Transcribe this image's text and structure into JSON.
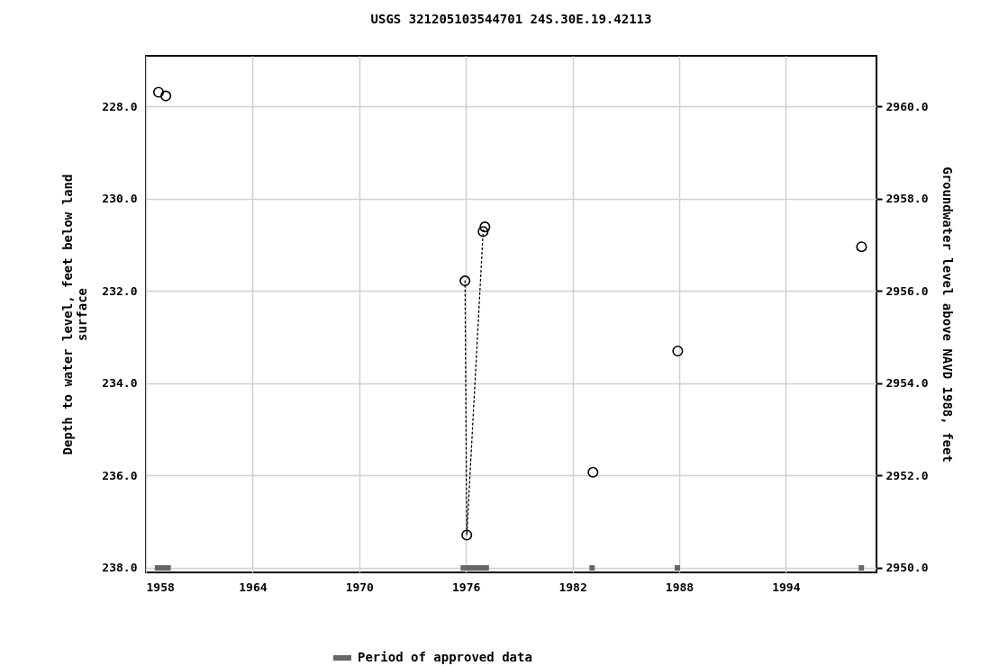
{
  "chart_data": {
    "type": "scatter",
    "title": "USGS 321205103544701 24S.30E.19.42113",
    "ylabel": "Depth to water level, feet below land surface",
    "y2label": "Groundwater level above NAVD 1988, feet",
    "xlim": [
      1958,
      1999.1
    ],
    "xticks": [
      1958,
      1964,
      1970,
      1976,
      1982,
      1988,
      1994
    ],
    "ylim": [
      238.1,
      226.9
    ],
    "yticks": [
      {
        "value": 228,
        "label": "228.0"
      },
      {
        "value": 230,
        "label": "230.0"
      },
      {
        "value": 232,
        "label": "232.0"
      },
      {
        "value": 234,
        "label": "234.0"
      },
      {
        "value": 236,
        "label": "236.0"
      },
      {
        "value": 238,
        "label": "238.0"
      }
    ],
    "y2lim": [
      2949.9,
      2961.1
    ],
    "y2ticks": [
      {
        "value": 2950,
        "label": "2950.0"
      },
      {
        "value": 2952,
        "label": "2952.0"
      },
      {
        "value": 2954,
        "label": "2954.0"
      },
      {
        "value": 2956,
        "label": "2956.0"
      },
      {
        "value": 2958,
        "label": "2958.0"
      },
      {
        "value": 2960,
        "label": "2960.0"
      }
    ],
    "grid": true,
    "legend": "bottom",
    "marker": "circle",
    "series": [
      {
        "color": "#000000",
        "x": [
          1958.71,
          1959.12,
          1975.95,
          1976.05,
          1976.97,
          1977.07,
          1983.15,
          1987.92,
          1998.26
        ],
        "values": [
          227.69,
          227.77,
          231.78,
          237.29,
          230.71,
          230.61,
          235.93,
          233.3,
          231.04
        ]
      },
      {
        "type": "line",
        "line_style": "dotted",
        "marker": "none",
        "color": "#000000",
        "x": [
          1975.95,
          1976.05,
          1976.97,
          1977.07
        ],
        "values": [
          231.78,
          237.29,
          230.71,
          230.61
        ]
      },
      {
        "type": "line",
        "name": "Period of approved data",
        "marker": "none",
        "color": "#666666",
        "x": [
          1958.5,
          1959.4,
          1966,
          1975.7,
          1977.3,
          1980,
          1982.95,
          1983.25,
          1985,
          1987.75,
          1988.05,
          1993,
          1998.1,
          1998.4
        ],
        "values": [
          238,
          238,
          null,
          238,
          238,
          null,
          238,
          238,
          null,
          238,
          238,
          null,
          238,
          238
        ]
      }
    ]
  }
}
